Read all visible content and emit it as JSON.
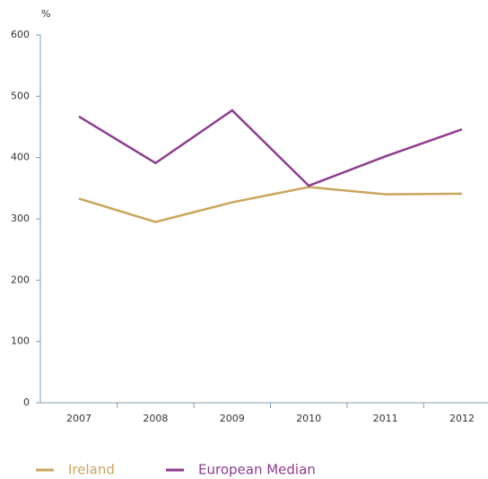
{
  "chart_data": {
    "type": "line",
    "y_label": "%",
    "categories": [
      "2007",
      "2008",
      "2009",
      "2010",
      "2011",
      "2012"
    ],
    "series": [
      {
        "name": "Ireland",
        "color": "#c9a55c",
        "values": [
          333,
          295,
          327,
          352,
          340,
          341
        ]
      },
      {
        "name": "European Median",
        "color": "#8e3b8e",
        "values": [
          467,
          391,
          477,
          354,
          402,
          446
        ]
      }
    ],
    "ylim": [
      0,
      600
    ],
    "yticks": [
      0,
      100,
      200,
      300,
      400,
      500,
      600
    ],
    "grid": false,
    "legend": "bottom"
  }
}
